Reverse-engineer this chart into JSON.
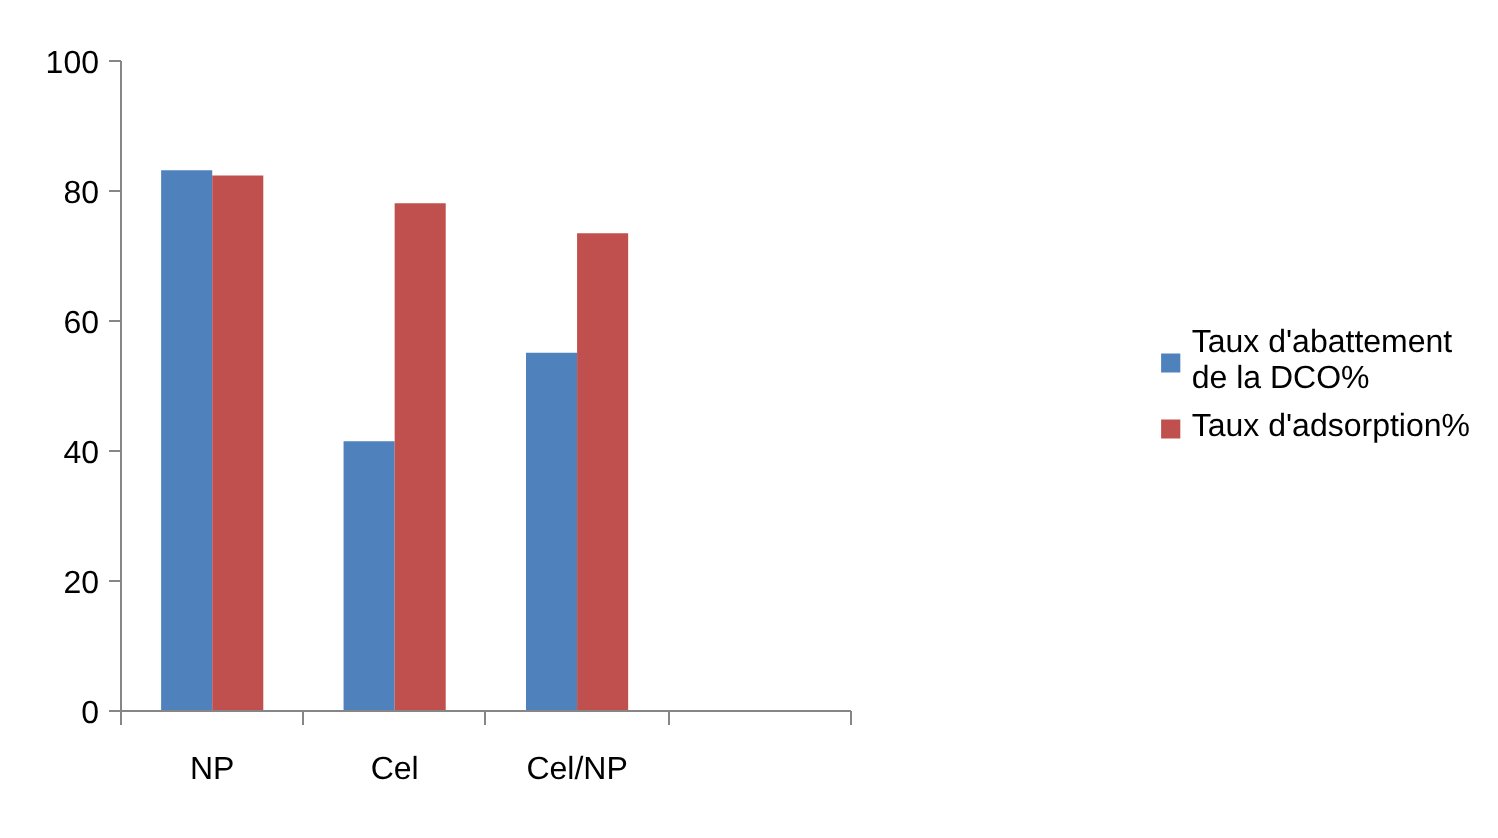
{
  "chart_data": {
    "type": "bar",
    "categories": [
      "NP",
      "Cel",
      "Cel/NP",
      null
    ],
    "series": [
      {
        "name": "Taux d'abattement de la DCO%",
        "color": "#4f81bd",
        "values": [
          83.2,
          41.5,
          55.1,
          null
        ]
      },
      {
        "name": "Taux d'adsorption%",
        "color": "#c0504d",
        "values": [
          82.4,
          78.1,
          73.5,
          null
        ]
      }
    ],
    "ylim": [
      0,
      100
    ],
    "yticks": [
      0,
      20,
      40,
      60,
      80,
      100
    ],
    "grid": false,
    "legend": "right"
  }
}
